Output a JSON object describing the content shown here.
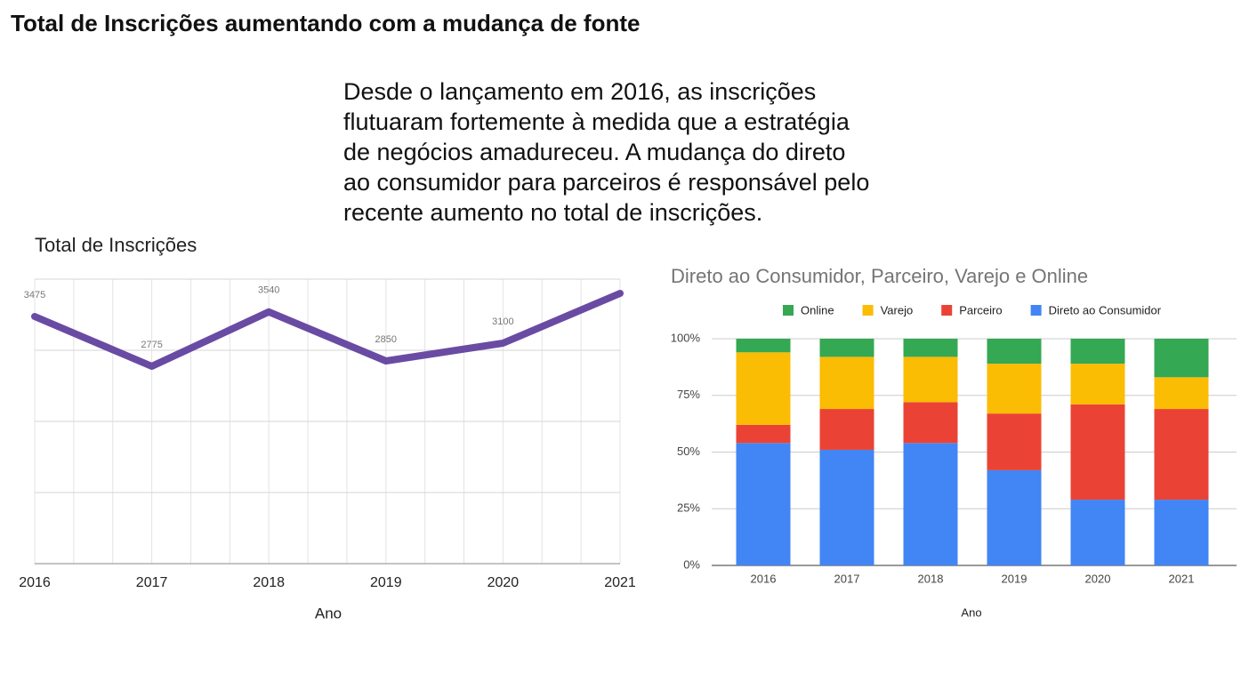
{
  "header": {
    "title": "Total de Inscrições aumentando com a mudança de fonte"
  },
  "paragraph": {
    "lines": [
      "Desde o lançamento em 2016, as inscrições",
      "flutuaram fortemente à medida que a estratégia",
      "de negócios amadureceu. A mudança do direto",
      "ao consumidor para parceiros é responsável pelo",
      "recente aumento no total de inscrições."
    ]
  },
  "chart_data": [
    {
      "type": "line",
      "title": "Total de Inscrições",
      "x_label": "Ano",
      "categories": [
        "2016",
        "2017",
        "2018",
        "2019",
        "2020",
        "2021"
      ],
      "values": [
        3475,
        2775,
        3540,
        2850,
        3100,
        3800
      ],
      "data_labels": [
        true,
        true,
        true,
        true,
        true,
        false
      ],
      "color": "#6a4ba3",
      "ylim": [
        0,
        4000
      ],
      "gridlines": [
        0,
        1000,
        2000,
        3000,
        4000
      ],
      "grid": true
    },
    {
      "type": "stacked_bar",
      "title": "Direto ao Consumidor, Parceiro, Varejo e Online",
      "x_label": "Ano",
      "categories": [
        "2016",
        "2017",
        "2018",
        "2019",
        "2020",
        "2021"
      ],
      "series": [
        {
          "name": "Online",
          "color": "#34a853",
          "values": [
            6,
            8,
            8,
            11,
            11,
            17
          ]
        },
        {
          "name": "Varejo",
          "color": "#fbbc04",
          "values": [
            32,
            23,
            20,
            22,
            18,
            14
          ]
        },
        {
          "name": "Parceiro",
          "color": "#ea4335",
          "values": [
            8,
            18,
            18,
            25,
            42,
            40
          ]
        },
        {
          "name": "Direto ao Consumidor",
          "color": "#4285f4",
          "values": [
            54,
            51,
            54,
            42,
            29,
            29
          ]
        }
      ],
      "ylim": [
        0,
        100
      ],
      "yticks": [
        {
          "value": 0,
          "label": "0%"
        },
        {
          "value": 25,
          "label": "25%"
        },
        {
          "value": 50,
          "label": "50%"
        },
        {
          "value": 75,
          "label": "75%"
        },
        {
          "value": 100,
          "label": "100%"
        }
      ],
      "grid": true,
      "legend": "top"
    }
  ]
}
